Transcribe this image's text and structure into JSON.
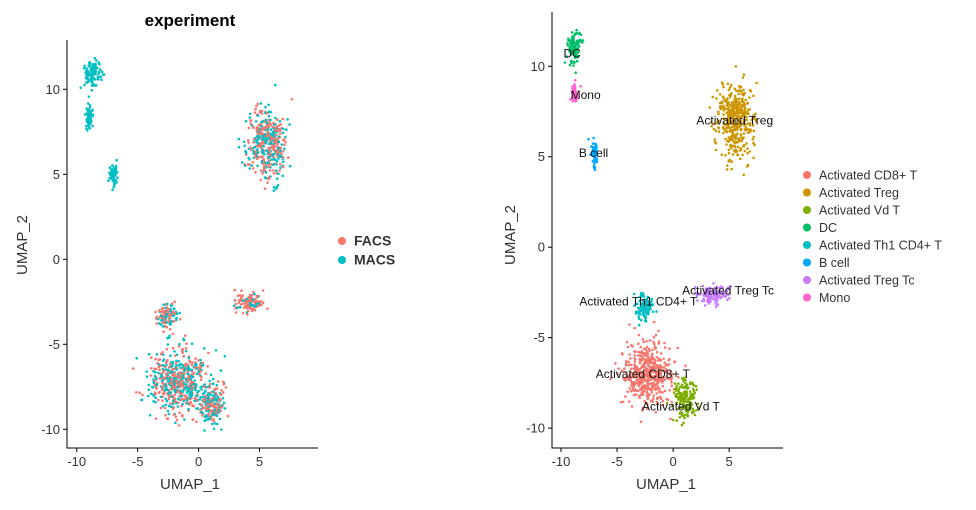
{
  "chart_data": [
    {
      "type": "scatter",
      "title": "experiment",
      "xlabel": "UMAP_1",
      "ylabel": "UMAP_2",
      "xlim": [
        -10.8,
        9.8
      ],
      "ylim": [
        -11.1,
        12.9
      ],
      "xticks": [
        -10,
        -5,
        0,
        5
      ],
      "yticks": [
        -10,
        -5,
        0,
        5,
        10
      ],
      "grid": false,
      "legend_position": "right",
      "legend_title": "",
      "series": [
        {
          "name": "FACS",
          "color": "#F8766D"
        },
        {
          "name": "MACS",
          "color": "#00BFC4"
        }
      ],
      "point_clouds": [
        {
          "cluster": "Activated CD8+ T",
          "center": [
            -1.6,
            -7.2
          ],
          "spread": [
            2.2,
            1.7
          ],
          "share": {
            "FACS": 0.5,
            "MACS": 0.5
          }
        },
        {
          "cluster": "Activated Treg",
          "center": [
            5.6,
            6.9
          ],
          "spread": [
            1.5,
            1.9
          ],
          "share": {
            "FACS": 0.5,
            "MACS": 0.5
          }
        },
        {
          "cluster": "Activated Vd T",
          "center": [
            1.1,
            -8.6
          ],
          "spread": [
            1.0,
            1.0
          ],
          "share": {
            "FACS": 0.5,
            "MACS": 0.5
          }
        },
        {
          "cluster": "DC",
          "center": [
            -8.7,
            10.9
          ],
          "spread": [
            0.6,
            0.8
          ],
          "share": {
            "FACS": 0.0,
            "MACS": 1.0
          }
        },
        {
          "cluster": "Activated Th1 CD4+ T",
          "center": [
            -2.6,
            -3.3
          ],
          "spread": [
            0.8,
            0.6
          ],
          "share": {
            "FACS": 0.5,
            "MACS": 0.5
          }
        },
        {
          "cluster": "B cell",
          "center": [
            -7.0,
            5.0
          ],
          "spread": [
            0.28,
            0.6
          ],
          "share": {
            "FACS": 0.0,
            "MACS": 1.0
          }
        },
        {
          "cluster": "Activated Treg Tc",
          "center": [
            4.2,
            -2.6
          ],
          "spread": [
            1.1,
            0.5
          ],
          "share": {
            "FACS": 0.85,
            "MACS": 0.15
          }
        },
        {
          "cluster": "Mono",
          "center": [
            -9.0,
            8.4
          ],
          "spread": [
            0.3,
            0.6
          ],
          "share": {
            "FACS": 0.0,
            "MACS": 1.0
          }
        }
      ]
    },
    {
      "type": "scatter",
      "title": "",
      "xlabel": "UMAP_1",
      "ylabel": "UMAP_2",
      "xlim": [
        -10.8,
        9.8
      ],
      "ylim": [
        -11.1,
        13.0
      ],
      "xticks": [
        -10,
        -5,
        0,
        5
      ],
      "yticks": [
        -10,
        -5,
        0,
        5,
        10
      ],
      "grid": false,
      "legend_position": "right",
      "series": [
        {
          "name": "Activated CD8+ T",
          "color": "#F8766D"
        },
        {
          "name": "Activated Treg",
          "color": "#CD9600"
        },
        {
          "name": "Activated Vd T",
          "color": "#7CAE00"
        },
        {
          "name": "DC",
          "color": "#00BE67"
        },
        {
          "name": "Activated Th1 CD4+ T",
          "color": "#00BFC4"
        },
        {
          "name": "B cell",
          "color": "#00A9FF"
        },
        {
          "name": "Activated Treg Tc",
          "color": "#C77CFF"
        },
        {
          "name": "Mono",
          "color": "#FF61CC"
        }
      ],
      "annotations": [
        {
          "text": "DC",
          "x": -9.0,
          "y": 10.7
        },
        {
          "text": "Mono",
          "x": -7.8,
          "y": 8.4
        },
        {
          "text": "Activated Treg",
          "x": 5.5,
          "y": 7.0
        },
        {
          "text": "B cell",
          "x": -7.1,
          "y": 5.2
        },
        {
          "text": "Activated Treg Tc",
          "x": 4.9,
          "y": -2.4
        },
        {
          "text": "Activated Th1 CD4+ T",
          "x": -3.1,
          "y": -3.0
        },
        {
          "text": "Activated CD8+ T",
          "x": -2.7,
          "y": -7.0
        },
        {
          "text": "Activated Vd T",
          "x": 0.7,
          "y": -8.8
        }
      ],
      "point_clouds": [
        {
          "cluster": "Activated CD8+ T",
          "center": [
            -2.3,
            -7.0
          ],
          "spread": [
            1.9,
            1.6
          ]
        },
        {
          "cluster": "Activated Treg",
          "center": [
            5.6,
            7.0
          ],
          "spread": [
            1.4,
            1.9
          ]
        },
        {
          "cluster": "Activated Vd T",
          "center": [
            1.1,
            -8.4
          ],
          "spread": [
            0.9,
            1.0
          ]
        },
        {
          "cluster": "DC",
          "center": [
            -8.8,
            11.0
          ],
          "spread": [
            0.6,
            0.8
          ]
        },
        {
          "cluster": "Activated Th1 CD4+ T",
          "center": [
            -2.6,
            -3.3
          ],
          "spread": [
            0.7,
            0.6
          ]
        },
        {
          "cluster": "B cell",
          "center": [
            -7.0,
            5.2
          ],
          "spread": [
            0.3,
            0.6
          ]
        },
        {
          "cluster": "Activated Treg Tc",
          "center": [
            3.5,
            -2.6
          ],
          "spread": [
            1.2,
            0.5
          ]
        },
        {
          "cluster": "Mono",
          "center": [
            -8.8,
            8.5
          ],
          "spread": [
            0.3,
            0.5
          ]
        }
      ]
    }
  ]
}
